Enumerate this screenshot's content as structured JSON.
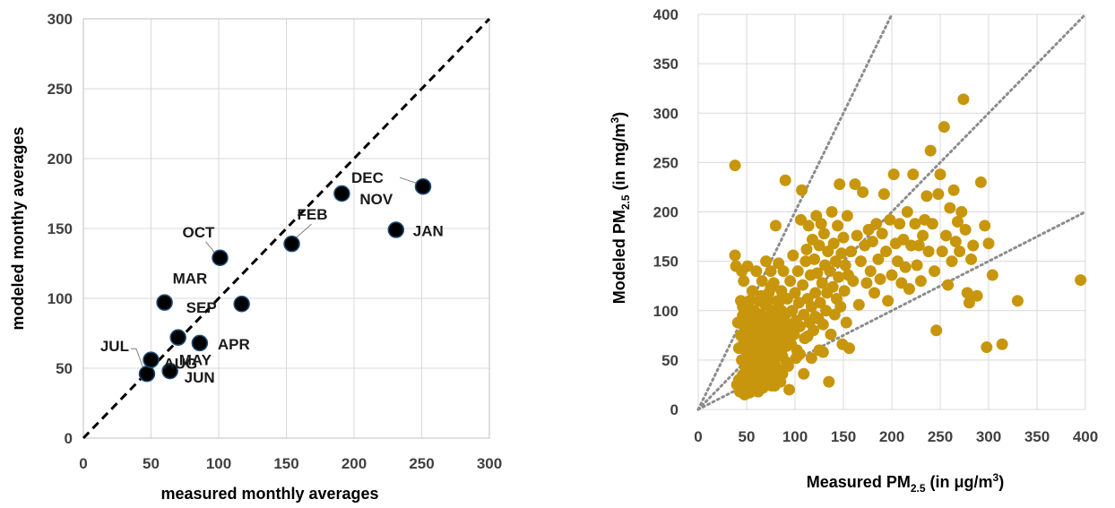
{
  "chart_data": [
    {
      "type": "scatter",
      "xlabel": "measured monthly averages",
      "ylabel": "modeled monthy averages",
      "xlim": [
        0,
        300
      ],
      "ylim": [
        0,
        300
      ],
      "xticks": [
        "0",
        "50",
        "100",
        "150",
        "200",
        "250",
        "300"
      ],
      "yticks": [
        "0",
        "50",
        "100",
        "150",
        "200",
        "250",
        "300"
      ],
      "grid": true,
      "reference_line": "1:1 dashed",
      "colors": {
        "marker": "#000000",
        "marker_edge": "#1f4e79",
        "reference": "#000000"
      },
      "points": [
        {
          "label": "JAN",
          "x": 231,
          "y": 149
        },
        {
          "label": "FEB",
          "x": 154,
          "y": 139
        },
        {
          "label": "MAR",
          "x": 60,
          "y": 97
        },
        {
          "label": "APR",
          "x": 86,
          "y": 68
        },
        {
          "label": "MAY",
          "x": 70,
          "y": 72
        },
        {
          "label": "JUN",
          "x": 64,
          "y": 48
        },
        {
          "label": "JUL",
          "x": 47,
          "y": 46
        },
        {
          "label": "AUG",
          "x": 50,
          "y": 56
        },
        {
          "label": "SEP",
          "x": 117,
          "y": 96
        },
        {
          "label": "OCT",
          "x": 101,
          "y": 129
        },
        {
          "label": "NOV",
          "x": 191,
          "y": 175
        },
        {
          "label": "DEC",
          "x": 251,
          "y": 180
        }
      ]
    },
    {
      "type": "scatter",
      "xlabel": {
        "pre": "Measured PM",
        "sub": "2.5",
        "post": " (in μg/m",
        "sup": "3",
        "end": ")"
      },
      "ylabel": {
        "pre": "Modeled PM",
        "sub": "2.5",
        "post": " (in mg/m",
        "sup": "3",
        "end": ")"
      },
      "xlim": [
        0,
        400
      ],
      "ylim": [
        0,
        400
      ],
      "xticks": [
        "0",
        "50",
        "100",
        "150",
        "200",
        "250",
        "300",
        "350",
        "400"
      ],
      "yticks": [
        "0",
        "50",
        "100",
        "150",
        "200",
        "250",
        "300",
        "350",
        "400"
      ],
      "grid": true,
      "reference_lines": [
        "y = 2x",
        "y = x",
        "y = 0.5x"
      ],
      "colors": {
        "marker": "#c8960c",
        "reference": "#8c8c8c"
      },
      "points": [
        [
          38,
          247
        ],
        [
          38,
          156
        ],
        [
          39,
          145
        ],
        [
          40,
          25
        ],
        [
          41,
          88
        ],
        [
          42,
          30
        ],
        [
          42,
          62
        ],
        [
          43,
          18
        ],
        [
          44,
          75
        ],
        [
          44,
          110
        ],
        [
          45,
          50
        ],
        [
          45,
          20
        ],
        [
          46,
          95
        ],
        [
          46,
          35
        ],
        [
          47,
          130
        ],
        [
          47,
          68
        ],
        [
          48,
          15
        ],
        [
          48,
          80
        ],
        [
          49,
          42
        ],
        [
          49,
          100
        ],
        [
          50,
          22
        ],
        [
          50,
          58
        ],
        [
          51,
          145
        ],
        [
          51,
          88
        ],
        [
          52,
          30
        ],
        [
          52,
          70
        ],
        [
          53,
          110
        ],
        [
          53,
          17
        ],
        [
          54,
          47
        ],
        [
          54,
          92
        ],
        [
          55,
          26
        ],
        [
          55,
          63
        ],
        [
          56,
          120
        ],
        [
          56,
          38
        ],
        [
          57,
          80
        ],
        [
          57,
          19
        ],
        [
          58,
          55
        ],
        [
          58,
          100
        ],
        [
          59,
          33
        ],
        [
          59,
          72
        ],
        [
          60,
          140
        ],
        [
          60,
          24
        ],
        [
          61,
          60
        ],
        [
          61,
          90
        ],
        [
          62,
          18
        ],
        [
          62,
          45
        ],
        [
          63,
          78
        ],
        [
          63,
          110
        ],
        [
          64,
          28
        ],
        [
          64,
          66
        ],
        [
          65,
          96
        ],
        [
          65,
          40
        ],
        [
          66,
          54
        ],
        [
          66,
          130
        ],
        [
          67,
          22
        ],
        [
          67,
          84
        ],
        [
          68,
          62
        ],
        [
          68,
          36
        ],
        [
          69,
          106
        ],
        [
          69,
          48
        ],
        [
          70,
          150
        ],
        [
          70,
          75
        ],
        [
          71,
          26
        ],
        [
          71,
          58
        ],
        [
          72,
          92
        ],
        [
          72,
          42
        ],
        [
          73,
          118
        ],
        [
          73,
          68
        ],
        [
          74,
          30
        ],
        [
          74,
          86
        ],
        [
          75,
          52
        ],
        [
          75,
          140
        ],
        [
          76,
          24
        ],
        [
          76,
          100
        ],
        [
          77,
          64
        ],
        [
          77,
          38
        ],
        [
          78,
          80
        ],
        [
          78,
          128
        ],
        [
          79,
          46
        ],
        [
          79,
          70
        ],
        [
          80,
          186
        ],
        [
          80,
          92
        ],
        [
          81,
          34
        ],
        [
          81,
          56
        ],
        [
          82,
          110
        ],
        [
          82,
          74
        ],
        [
          83,
          148
        ],
        [
          83,
          40
        ],
        [
          84,
          88
        ],
        [
          84,
          62
        ],
        [
          85,
          28
        ],
        [
          86,
          120
        ],
        [
          86,
          100
        ],
        [
          87,
          54
        ],
        [
          88,
          78
        ],
        [
          88,
          140
        ],
        [
          89,
          94
        ],
        [
          90,
          70
        ],
        [
          90,
          232
        ],
        [
          91,
          48
        ],
        [
          92,
          112
        ],
        [
          93,
          86
        ],
        [
          94,
          20
        ],
        [
          95,
          130
        ],
        [
          96,
          66
        ],
        [
          97,
          100
        ],
        [
          98,
          156
        ],
        [
          99,
          76
        ],
        [
          100,
          118
        ],
        [
          101,
          90
        ],
        [
          102,
          60
        ],
        [
          103,
          140
        ],
        [
          104,
          108
        ],
        [
          105,
          84
        ],
        [
          106,
          192
        ],
        [
          107,
          222
        ],
        [
          108,
          126
        ],
        [
          109,
          96
        ],
        [
          110,
          72
        ],
        [
          111,
          150
        ],
        [
          112,
          162
        ],
        [
          113,
          112
        ],
        [
          114,
          186
        ],
        [
          115,
          88
        ],
        [
          116,
          136
        ],
        [
          117,
          104
        ],
        [
          118,
          172
        ],
        [
          119,
          80
        ],
        [
          120,
          152
        ],
        [
          121,
          118
        ],
        [
          122,
          196
        ],
        [
          123,
          138
        ],
        [
          124,
          92
        ],
        [
          125,
          166
        ],
        [
          126,
          108
        ],
        [
          127,
          188
        ],
        [
          128,
          128
        ],
        [
          129,
          58
        ],
        [
          130,
          178
        ],
        [
          131,
          146
        ],
        [
          132,
          100
        ],
        [
          133,
          118
        ],
        [
          134,
          160
        ],
        [
          135,
          28
        ],
        [
          136,
          140
        ],
        [
          137,
          76
        ],
        [
          138,
          200
        ],
        [
          139,
          124
        ],
        [
          140,
          168
        ],
        [
          141,
          96
        ],
        [
          142,
          150
        ],
        [
          143,
          112
        ],
        [
          144,
          186
        ],
        [
          145,
          134
        ],
        [
          146,
          228
        ],
        [
          147,
          104
        ],
        [
          148,
          158
        ],
        [
          149,
          66
        ],
        [
          150,
          174
        ],
        [
          151,
          120
        ],
        [
          152,
          146
        ],
        [
          153,
          88
        ],
        [
          154,
          196
        ],
        [
          155,
          136
        ],
        [
          156,
          62
        ],
        [
          158,
          160
        ],
        [
          160,
          130
        ],
        [
          162,
          228
        ],
        [
          164,
          176
        ],
        [
          166,
          106
        ],
        [
          168,
          150
        ],
        [
          170,
          220
        ],
        [
          172,
          166
        ],
        [
          174,
          128
        ],
        [
          176,
          182
        ],
        [
          178,
          140
        ],
        [
          180,
          170
        ],
        [
          182,
          118
        ],
        [
          184,
          188
        ],
        [
          186,
          152
        ],
        [
          188,
          132
        ],
        [
          190,
          178
        ],
        [
          192,
          218
        ],
        [
          194,
          160
        ],
        [
          196,
          110
        ],
        [
          198,
          192
        ],
        [
          200,
          136
        ],
        [
          202,
          238
        ],
        [
          204,
          168
        ],
        [
          206,
          150
        ],
        [
          208,
          188
        ],
        [
          210,
          128
        ],
        [
          212,
          172
        ],
        [
          214,
          144
        ],
        [
          216,
          200
        ],
        [
          218,
          122
        ],
        [
          220,
          166
        ],
        [
          222,
          238
        ],
        [
          224,
          188
        ],
        [
          226,
          146
        ],
        [
          228,
          166
        ],
        [
          230,
          130
        ],
        [
          232,
          176
        ],
        [
          234,
          192
        ],
        [
          236,
          216
        ],
        [
          238,
          160
        ],
        [
          240,
          262
        ],
        [
          242,
          188
        ],
        [
          244,
          140
        ],
        [
          246,
          80
        ],
        [
          248,
          218
        ],
        [
          250,
          238
        ],
        [
          252,
          160
        ],
        [
          254,
          286
        ],
        [
          256,
          176
        ],
        [
          258,
          126
        ],
        [
          260,
          204
        ],
        [
          262,
          150
        ],
        [
          264,
          222
        ],
        [
          266,
          170
        ],
        [
          268,
          190
        ],
        [
          270,
          160
        ],
        [
          272,
          200
        ],
        [
          274,
          314
        ],
        [
          276,
          182
        ],
        [
          278,
          118
        ],
        [
          280,
          108
        ],
        [
          282,
          152
        ],
        [
          284,
          166
        ],
        [
          288,
          115
        ],
        [
          292,
          230
        ],
        [
          296,
          186
        ],
        [
          298,
          63
        ],
        [
          300,
          168
        ],
        [
          304,
          136
        ],
        [
          314,
          66
        ],
        [
          330,
          110
        ],
        [
          395,
          131
        ],
        [
          45,
          140
        ],
        [
          55,
          100
        ],
        [
          65,
          115
        ],
        [
          75,
          123
        ],
        [
          85,
          58
        ],
        [
          58,
          30
        ],
        [
          62,
          88
        ],
        [
          68,
          28
        ],
        [
          72,
          110
        ],
        [
          76,
          56
        ],
        [
          52,
          82
        ],
        [
          48,
          62
        ],
        [
          54,
          38
        ],
        [
          46,
          104
        ],
        [
          57,
          92
        ],
        [
          63,
          56
        ],
        [
          67,
          44
        ],
        [
          71,
          36
        ],
        [
          79,
          24
        ],
        [
          83,
          108
        ],
        [
          87,
          36
        ],
        [
          91,
          64
        ],
        [
          93,
          44
        ],
        [
          97,
          82
        ],
        [
          101,
          52
        ],
        [
          105,
          56
        ],
        [
          109,
          36
        ],
        [
          113,
          74
        ],
        [
          117,
          52
        ],
        [
          121,
          94
        ],
        [
          125,
          60
        ],
        [
          129,
          86
        ]
      ]
    }
  ]
}
